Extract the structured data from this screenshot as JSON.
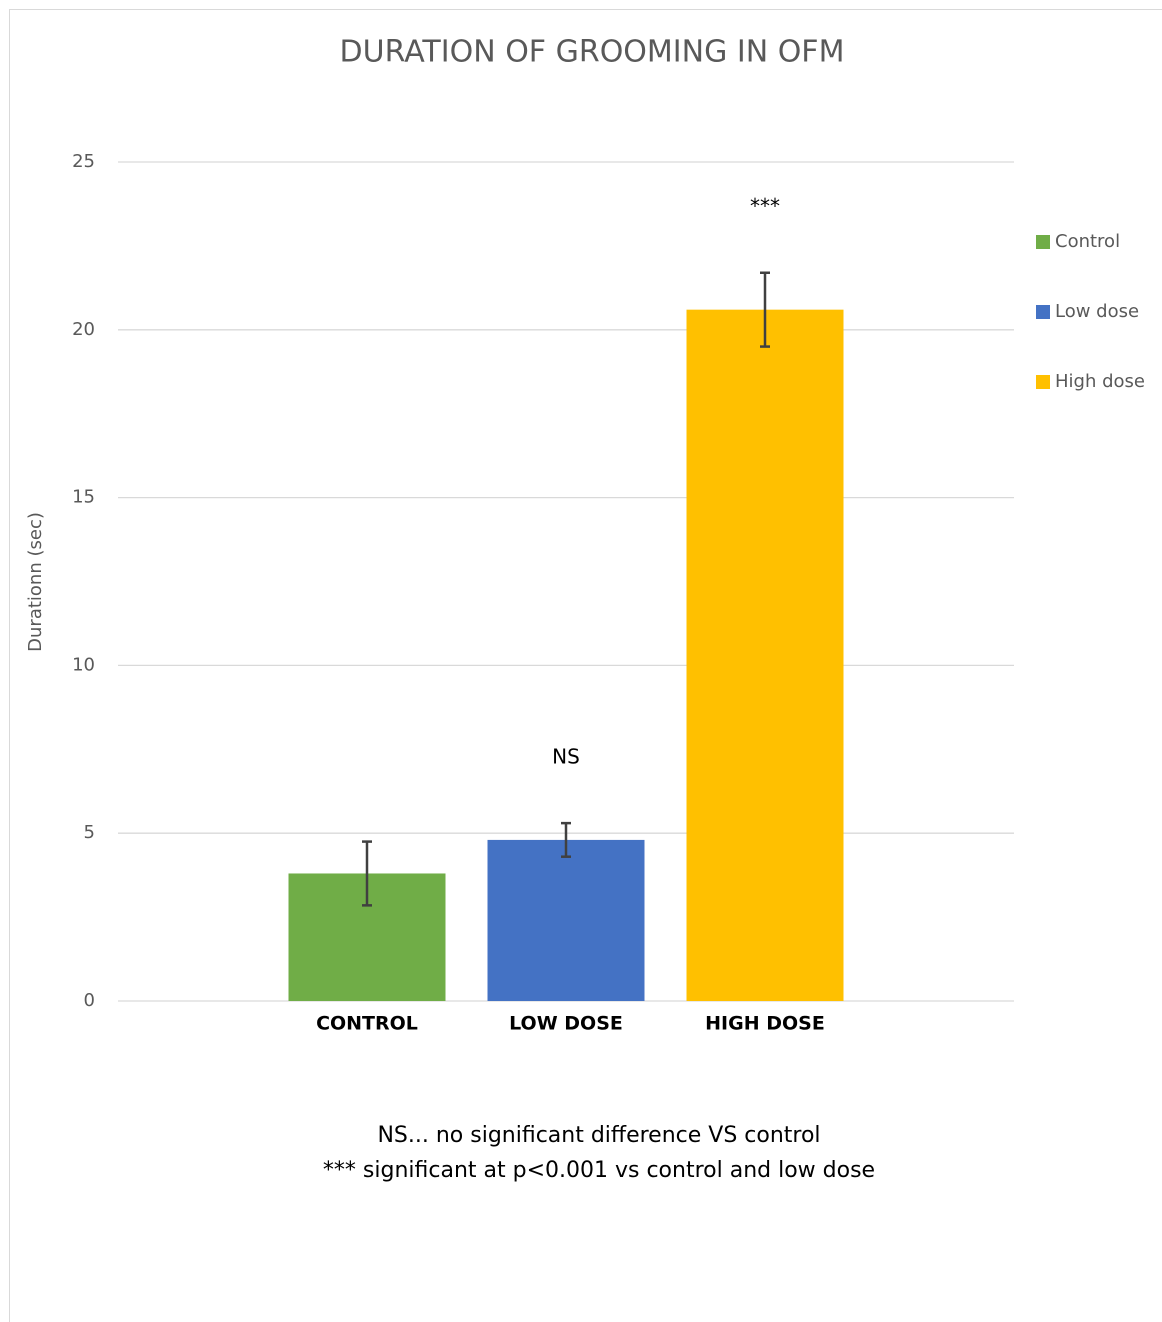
{
  "chart_data": {
    "type": "bar",
    "title": "DURATION OF GROOMING IN OFM",
    "y_label": "Durationn (sec)",
    "categories": [
      "CONTROL",
      "LOW DOSE",
      "HIGH DOSE"
    ],
    "series": [
      {
        "name": "Control",
        "color": "#70ad47",
        "values": [
          3.8,
          null,
          null
        ],
        "errors": [
          0.95,
          null,
          null
        ]
      },
      {
        "name": "Low dose",
        "color": "#4472c4",
        "values": [
          null,
          4.8,
          null
        ],
        "errors": [
          null,
          0.5,
          null
        ]
      },
      {
        "name": "High dose",
        "color": "#ffc000",
        "values": [
          null,
          null,
          20.6
        ],
        "errors": [
          null,
          null,
          1.1
        ]
      }
    ],
    "annotations": [
      null,
      "NS",
      "***"
    ],
    "footnotes": [
      "NS... no significant difference  VS control",
      "*** significant at p<0.001 vs control and low dose"
    ],
    "ylim": [
      0,
      25
    ],
    "yticks": [
      0,
      5,
      10,
      15,
      20,
      25
    ],
    "grid": true,
    "legend": "right"
  }
}
